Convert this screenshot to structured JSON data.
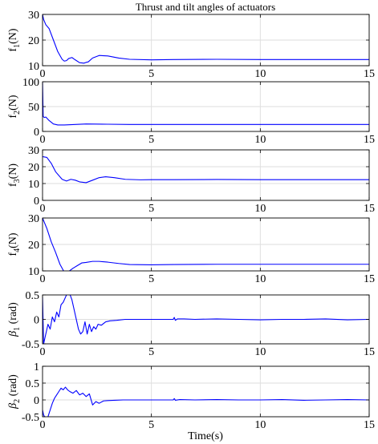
{
  "figure": {
    "title": "Thrust and tilt angles of actuators",
    "xlabel": "Time(s)"
  },
  "chart_data": [
    {
      "type": "line",
      "ylabel_main": "f",
      "ylabel_sub": "1",
      "ylabel_unit": "(N)",
      "xlim": [
        0,
        15
      ],
      "ylim": [
        10,
        30
      ],
      "xticks": [
        0,
        5,
        10,
        15
      ],
      "yticks": [
        10,
        20,
        30
      ],
      "grid": true,
      "series": [
        {
          "color": "#0000ff",
          "x": [
            0,
            0.05,
            0.15,
            0.3,
            0.5,
            0.7,
            0.9,
            1.0,
            1.1,
            1.2,
            1.35,
            1.5,
            1.7,
            1.9,
            2.0,
            2.1,
            2.3,
            2.6,
            3.0,
            3.5,
            4.0,
            5.0,
            6.0,
            8.0,
            10.0,
            12.0,
            15.0
          ],
          "y": [
            30,
            28,
            26,
            24.5,
            20,
            15.5,
            12.5,
            11.8,
            12.0,
            12.8,
            13.2,
            12.3,
            11.2,
            11.0,
            11.3,
            11.5,
            13.0,
            14.0,
            13.8,
            13.0,
            12.5,
            12.3,
            12.4,
            12.5,
            12.4,
            12.4,
            12.4
          ]
        }
      ]
    },
    {
      "type": "line",
      "ylabel_main": "f",
      "ylabel_sub": "2",
      "ylabel_unit": "(N)",
      "xlim": [
        0,
        15
      ],
      "ylim": [
        0,
        100
      ],
      "xticks": [
        0,
        5,
        10,
        15
      ],
      "yticks": [
        0,
        50,
        100
      ],
      "grid": true,
      "series": [
        {
          "color": "#0000ff",
          "x": [
            0,
            0.03,
            0.08,
            0.15,
            0.3,
            0.5,
            0.7,
            1.0,
            1.5,
            2.0,
            3.0,
            4.0,
            5.0,
            8.0,
            10.0,
            15.0
          ],
          "y": [
            100,
            30,
            28,
            29,
            22,
            15,
            13,
            13,
            14,
            15,
            14.5,
            14,
            14,
            14,
            14,
            14
          ]
        }
      ]
    },
    {
      "type": "line",
      "ylabel_main": "f",
      "ylabel_sub": "3",
      "ylabel_unit": "(N)",
      "xlim": [
        0,
        15
      ],
      "ylim": [
        0,
        30
      ],
      "xticks": [
        0,
        5,
        10,
        15
      ],
      "yticks": [
        0,
        10,
        20,
        30
      ],
      "grid": true,
      "series": [
        {
          "color": "#0000ff",
          "x": [
            0,
            0.2,
            0.4,
            0.6,
            0.9,
            1.1,
            1.3,
            1.5,
            1.7,
            2.0,
            2.3,
            2.6,
            2.9,
            3.3,
            3.8,
            4.5,
            5.0,
            6.0,
            8.0,
            10.0,
            12.0,
            15.0
          ],
          "y": [
            26,
            25.5,
            22,
            17,
            12.5,
            11.5,
            12.5,
            12,
            11,
            10.5,
            12,
            13.5,
            14,
            13.5,
            12.5,
            12.2,
            12.3,
            12.3,
            12.4,
            12.3,
            12.3,
            12.3
          ]
        }
      ]
    },
    {
      "type": "line",
      "ylabel_main": "f",
      "ylabel_sub": "4",
      "ylabel_unit": "(N)",
      "xlim": [
        0,
        15
      ],
      "ylim": [
        10,
        30
      ],
      "xticks": [
        0,
        5,
        10,
        15
      ],
      "yticks": [
        10,
        20,
        30
      ],
      "grid": true,
      "series": [
        {
          "color": "#0000ff",
          "x": [
            0,
            0.2,
            0.4,
            0.6,
            0.8,
            1.0,
            1.2,
            1.4,
            1.6,
            1.8,
            2.0,
            2.3,
            2.6,
            3.0,
            3.5,
            4.0,
            5.0,
            6.0,
            8.0,
            10.0,
            12.0,
            15.0
          ],
          "y": [
            30,
            26,
            21,
            17,
            12.5,
            9.5,
            9.8,
            11,
            12,
            13,
            13.2,
            13.6,
            13.6,
            13.3,
            12.8,
            12.4,
            12.3,
            12.4,
            12.5,
            12.5,
            12.5,
            12.5
          ]
        }
      ]
    },
    {
      "type": "line",
      "ylabel_main": "β",
      "ylabel_sub": "1",
      "ylabel_unit": " (rad)",
      "xlim": [
        0,
        15
      ],
      "ylim": [
        -0.5,
        0.5
      ],
      "xticks": [
        0,
        5,
        10,
        15
      ],
      "yticks": [
        -0.5,
        0,
        0.5
      ],
      "grid": true,
      "series": [
        {
          "color": "#0000ff",
          "x": [
            0,
            0.05,
            0.15,
            0.25,
            0.35,
            0.45,
            0.55,
            0.65,
            0.75,
            0.85,
            0.95,
            1.05,
            1.15,
            1.25,
            1.35,
            1.45,
            1.55,
            1.65,
            1.75,
            1.85,
            1.95,
            2.05,
            2.15,
            2.25,
            2.35,
            2.45,
            2.55,
            2.7,
            2.9,
            3.1,
            3.4,
            3.8,
            4.3,
            5.0,
            5.5,
            6.0,
            6.05,
            6.1,
            6.2,
            6.5,
            7.0,
            8.0,
            9.0,
            10.0,
            11.0,
            12.0,
            13.0,
            14.0,
            15.0
          ],
          "y": [
            0.45,
            -0.5,
            -0.3,
            -0.1,
            -0.2,
            0.05,
            -0.05,
            0.15,
            0.05,
            0.3,
            0.35,
            0.45,
            0.55,
            0.52,
            0.4,
            0.2,
            0.0,
            -0.2,
            -0.3,
            -0.25,
            -0.05,
            -0.3,
            -0.1,
            -0.25,
            -0.15,
            -0.2,
            -0.1,
            -0.12,
            -0.05,
            -0.03,
            -0.02,
            0.0,
            0.0,
            0.0,
            0.0,
            0.0,
            0.04,
            -0.02,
            0.01,
            0.01,
            0.0,
            0.01,
            0.0,
            -0.01,
            0.0,
            0.0,
            0.01,
            -0.01,
            0.0
          ]
        }
      ]
    },
    {
      "type": "line",
      "ylabel_main": "β",
      "ylabel_sub": "2",
      "ylabel_unit": " (rad)",
      "xlim": [
        0,
        15
      ],
      "ylim": [
        -0.5,
        1
      ],
      "xticks": [
        0,
        5,
        10,
        15
      ],
      "yticks": [
        -0.5,
        0,
        0.5,
        1
      ],
      "grid": true,
      "series": [
        {
          "color": "#0000ff",
          "x": [
            0,
            0.05,
            0.15,
            0.25,
            0.35,
            0.45,
            0.55,
            0.65,
            0.75,
            0.85,
            0.95,
            1.05,
            1.15,
            1.25,
            1.4,
            1.55,
            1.7,
            1.85,
            2.0,
            2.15,
            2.3,
            2.45,
            2.6,
            2.8,
            3.0,
            3.3,
            3.7,
            4.2,
            5.0,
            6.0,
            6.05,
            6.1,
            6.3,
            7.0,
            8.0,
            9.0,
            10.0,
            11.0,
            12.0,
            13.0,
            14.0,
            15.0
          ],
          "y": [
            -0.3,
            -0.45,
            -0.55,
            -0.5,
            -0.3,
            -0.1,
            0.05,
            0.15,
            0.25,
            0.35,
            0.3,
            0.38,
            0.3,
            0.25,
            0.2,
            0.28,
            0.15,
            0.2,
            0.1,
            0.18,
            -0.15,
            -0.05,
            -0.1,
            -0.03,
            -0.02,
            -0.01,
            0.0,
            0.0,
            0.0,
            0.0,
            0.04,
            -0.01,
            0.01,
            0.0,
            0.01,
            0.0,
            0.0,
            0.01,
            -0.01,
            0.0,
            0.01,
            0.0
          ]
        }
      ]
    }
  ]
}
